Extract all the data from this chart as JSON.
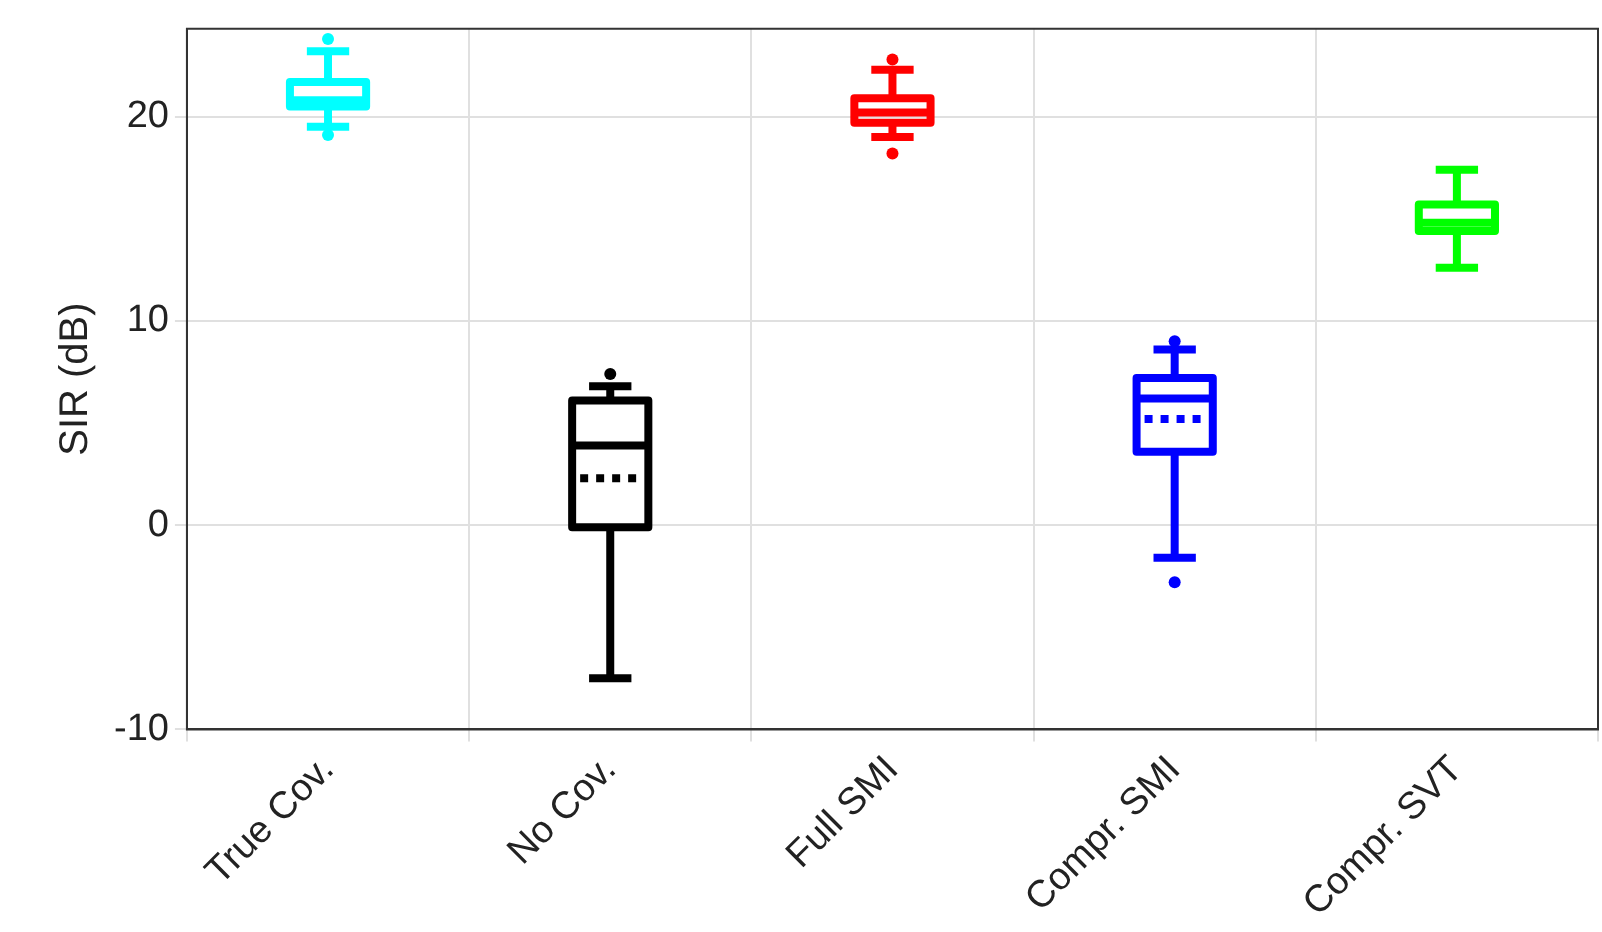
{
  "chart_data": {
    "type": "box",
    "ylabel": "SIR (dB)",
    "categories": [
      "True Cov.",
      "No Cov.",
      "Full SMI",
      "Compr. SMI",
      "Compr. SVT"
    ],
    "colors": [
      "#00ffff",
      "#000000",
      "#ff0000",
      "#0000ff",
      "#00ff00"
    ],
    "boxes": [
      {
        "low": 19.5,
        "q1": 20.5,
        "median": 20.8,
        "q3": 21.7,
        "high": 23.2,
        "outliers": [
          23.8,
          19.1
        ]
      },
      {
        "low": -7.5,
        "q1": -0.1,
        "median": 3.9,
        "q3": 6.1,
        "high": 6.8,
        "mean": 2.3,
        "outliers": [
          7.4
        ]
      },
      {
        "low": 19.0,
        "q1": 19.7,
        "median": 20.2,
        "q3": 20.9,
        "high": 22.3,
        "outliers": [
          22.8,
          18.2
        ]
      },
      {
        "low": -1.6,
        "q1": 3.6,
        "median": 6.2,
        "q3": 7.2,
        "high": 8.6,
        "mean": 5.2,
        "outliers": [
          9.0,
          -2.8
        ]
      },
      {
        "low": 12.6,
        "q1": 14.4,
        "median": 14.8,
        "q3": 15.7,
        "high": 17.4
      }
    ],
    "ylim": [
      -10,
      24.3
    ],
    "yticks": [
      -10,
      0,
      10,
      20
    ],
    "grid": true
  }
}
